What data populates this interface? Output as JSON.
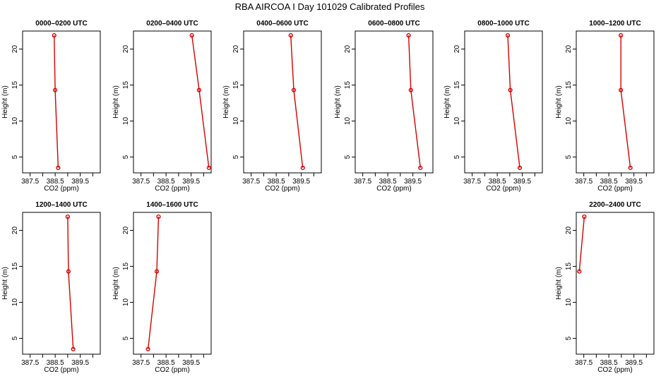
{
  "title": "RBA AIRCOA I  Day 101029  Calibrated Profiles",
  "colors": {
    "series": "#d40000",
    "axis": "#000000",
    "background": "#ffffff"
  },
  "chart_data": [
    {
      "type": "line",
      "title": "0000–0200 UTC",
      "xlabel": "CO2 (ppm)",
      "ylabel": "Height (m)",
      "xlim": [
        387.2,
        390.3
      ],
      "ylim": [
        2.8,
        22.5
      ],
      "xticks": [
        "387.5",
        "388.5",
        "389.5"
      ],
      "xtick_values": [
        387.5,
        388.5,
        389.5
      ],
      "yticks": [
        "5",
        "10",
        "15",
        "20"
      ],
      "ytick_values": [
        5,
        10,
        15,
        20
      ],
      "x": [
        388.46,
        388.5,
        388.62
      ],
      "y": [
        21.9,
        14.3,
        3.5
      ]
    },
    {
      "type": "line",
      "title": "0200–0400 UTC",
      "xlabel": "CO2 (ppm)",
      "ylabel": "Height (m)",
      "xlim": [
        387.2,
        390.3
      ],
      "ylim": [
        2.8,
        22.5
      ],
      "xticks": [
        "387.5",
        "388.5",
        "389.5"
      ],
      "xtick_values": [
        387.5,
        388.5,
        389.5
      ],
      "yticks": [
        "5",
        "10",
        "15",
        "20"
      ],
      "ytick_values": [
        5,
        10,
        15,
        20
      ],
      "x": [
        389.53,
        389.82,
        390.21
      ],
      "y": [
        21.9,
        14.3,
        3.5
      ]
    },
    {
      "type": "line",
      "title": "0400–0600 UTC",
      "xlabel": "CO2 (ppm)",
      "ylabel": "Height (m)",
      "xlim": [
        387.2,
        390.3
      ],
      "ylim": [
        2.8,
        22.5
      ],
      "xticks": [
        "387.5",
        "388.5",
        "389.5"
      ],
      "xtick_values": [
        387.5,
        388.5,
        389.5
      ],
      "yticks": [
        "5",
        "10",
        "15",
        "20"
      ],
      "ytick_values": [
        5,
        10,
        15,
        20
      ],
      "x": [
        389.08,
        389.2,
        389.56
      ],
      "y": [
        21.9,
        14.3,
        3.5
      ]
    },
    {
      "type": "line",
      "title": "0600–0800 UTC",
      "xlabel": "CO2 (ppm)",
      "ylabel": "Height (m)",
      "xlim": [
        387.2,
        390.3
      ],
      "ylim": [
        2.8,
        22.5
      ],
      "xticks": [
        "387.5",
        "388.5",
        "389.5"
      ],
      "xtick_values": [
        387.5,
        388.5,
        389.5
      ],
      "yticks": [
        "5",
        "10",
        "15",
        "20"
      ],
      "ytick_values": [
        5,
        10,
        15,
        20
      ],
      "x": [
        389.33,
        389.42,
        389.8
      ],
      "y": [
        21.9,
        14.3,
        3.5
      ]
    },
    {
      "type": "line",
      "title": "0800–1000 UTC",
      "xlabel": "CO2 (ppm)",
      "ylabel": "Height (m)",
      "xlim": [
        387.2,
        390.3
      ],
      "ylim": [
        2.8,
        22.5
      ],
      "xticks": [
        "387.5",
        "388.5",
        "389.5"
      ],
      "xtick_values": [
        387.5,
        388.5,
        389.5
      ],
      "yticks": [
        "5",
        "10",
        "15",
        "20"
      ],
      "ytick_values": [
        5,
        10,
        15,
        20
      ],
      "x": [
        388.92,
        389.02,
        389.4
      ],
      "y": [
        21.9,
        14.3,
        3.5
      ]
    },
    {
      "type": "line",
      "title": "1000–1200 UTC",
      "xlabel": "CO2 (ppm)",
      "ylabel": "Height (m)",
      "xlim": [
        387.2,
        390.3
      ],
      "ylim": [
        2.8,
        22.5
      ],
      "xticks": [
        "387.5",
        "388.5",
        "389.5"
      ],
      "xtick_values": [
        387.5,
        388.5,
        389.5
      ],
      "yticks": [
        "5",
        "10",
        "15",
        "20"
      ],
      "ytick_values": [
        5,
        10,
        15,
        20
      ],
      "x": [
        388.98,
        388.98,
        389.36
      ],
      "y": [
        21.9,
        14.3,
        3.5
      ]
    },
    {
      "type": "line",
      "title": "1200–1400 UTC",
      "xlabel": "CO2 (ppm)",
      "ylabel": "Height (m)",
      "xlim": [
        387.2,
        390.3
      ],
      "ylim": [
        2.8,
        22.5
      ],
      "xticks": [
        "387.5",
        "388.5",
        "389.5"
      ],
      "xtick_values": [
        387.5,
        388.5,
        389.5
      ],
      "yticks": [
        "5",
        "10",
        "15",
        "20"
      ],
      "ytick_values": [
        5,
        10,
        15,
        20
      ],
      "x": [
        389.0,
        389.03,
        389.22
      ],
      "y": [
        21.9,
        14.3,
        3.5
      ]
    },
    {
      "type": "line",
      "title": "1400–1600 UTC",
      "xlabel": "CO2 (ppm)",
      "ylabel": "Height (m)",
      "xlim": [
        387.2,
        390.3
      ],
      "ylim": [
        2.8,
        22.5
      ],
      "xticks": [
        "387.5",
        "388.5",
        "389.5"
      ],
      "xtick_values": [
        387.5,
        388.5,
        389.5
      ],
      "yticks": [
        "5",
        "10",
        "15",
        "20"
      ],
      "ytick_values": [
        5,
        10,
        15,
        20
      ],
      "x": [
        388.2,
        388.13,
        387.78
      ],
      "y": [
        21.9,
        14.3,
        3.5
      ]
    },
    {
      "type": "line",
      "title": "2200–2400 UTC",
      "xlabel": "CO2 (ppm)",
      "ylabel": "Height (m)",
      "xlim": [
        387.2,
        390.3
      ],
      "ylim": [
        2.8,
        22.5
      ],
      "xticks": [
        "387.5",
        "388.5",
        "389.5"
      ],
      "xtick_values": [
        387.5,
        388.5,
        389.5
      ],
      "yticks": [
        "5",
        "10",
        "15",
        "20"
      ],
      "ytick_values": [
        5,
        10,
        15,
        20
      ],
      "x": [
        387.52,
        387.32
      ],
      "y": [
        21.9,
        14.3
      ]
    }
  ]
}
